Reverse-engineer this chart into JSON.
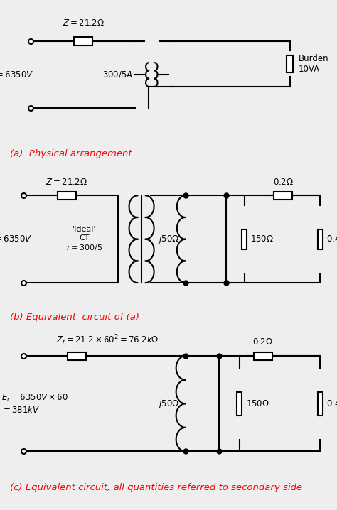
{
  "bg_color": "#eeeeee",
  "line_color": "black",
  "line_width": 1.5,
  "label_a": "(a)  Physical arrangement",
  "label_b": "(b) Equivalent  circuit of (a)",
  "label_c": "(c) Equivalent circuit, all quantities referred to secondary side",
  "label_color": "red",
  "label_fontsize": 9.5
}
